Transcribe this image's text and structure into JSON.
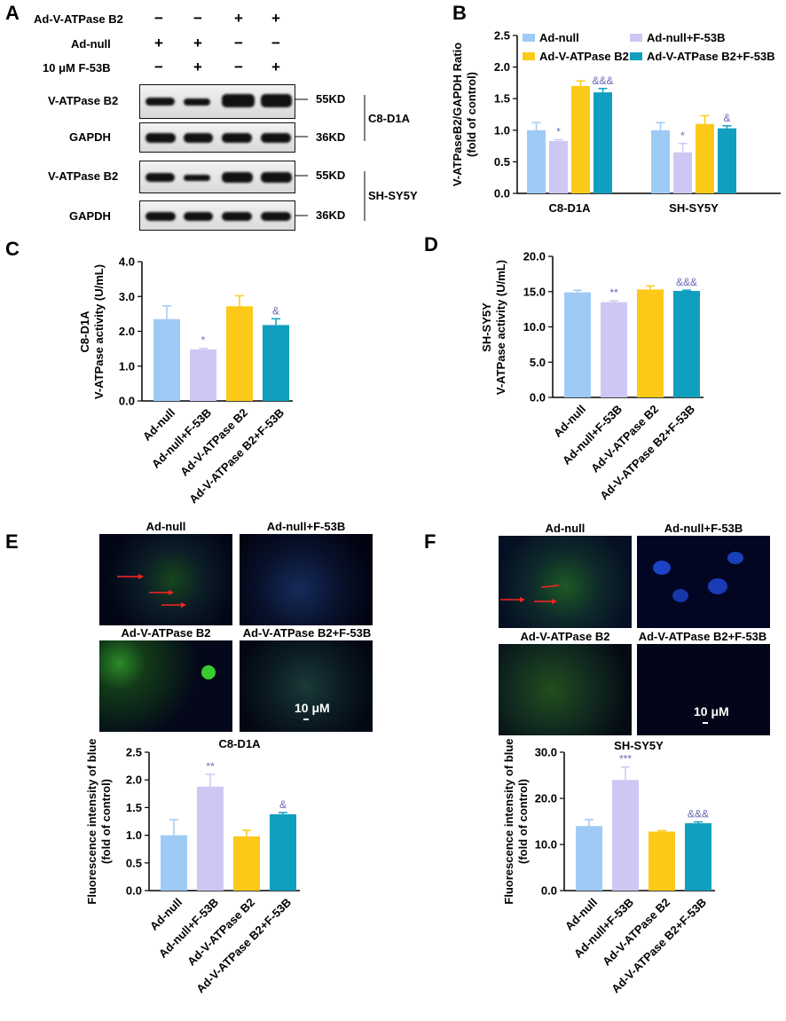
{
  "panels": {
    "A": "A",
    "B": "B",
    "C": "C",
    "D": "D",
    "E": "E",
    "F": "F"
  },
  "colors": {
    "ad_null": "#9ecbf5",
    "ad_null_f53b": "#cdc8f3",
    "ad_vatpase": "#fcc918",
    "ad_vatpase_f53b": "#119fbf",
    "sig": "#6c6ab3",
    "axis": "#000000"
  },
  "panelA": {
    "rows": [
      {
        "label": "Ad-V-ATPase B2",
        "signs": [
          "−",
          "−",
          "+",
          "+"
        ]
      },
      {
        "label": "Ad-null",
        "signs": [
          "+",
          "+",
          "−",
          "−"
        ]
      },
      {
        "label": "10 μM F-53B",
        "signs": [
          "−",
          "+",
          "−",
          "+"
        ]
      }
    ],
    "blots": [
      {
        "label": "V-ATPase B2",
        "kd": "55KD"
      },
      {
        "label": "GAPDH",
        "kd": "36KD"
      },
      {
        "label": "V-ATPase B2",
        "kd": "55KD"
      },
      {
        "label": "GAPDH",
        "kd": "36KD"
      }
    ],
    "cell_lines": [
      "C8-D1A",
      "SH-SY5Y"
    ]
  },
  "panelE": {
    "images": [
      "Ad-null",
      "Ad-null+F-53B",
      "Ad-V-ATPase B2",
      "Ad-V-ATPase B2+F-53B"
    ],
    "scale": "10 μM",
    "cell_line": "C8-D1A"
  },
  "panelF": {
    "images": [
      "Ad-null",
      "Ad-null+F-53B",
      "Ad-V-ATPase B2",
      "Ad-V-ATPase B2+F-53B"
    ],
    "scale": "10 μM",
    "cell_line": "SH-SY5Y"
  },
  "chart_data": [
    {
      "id": "B",
      "type": "bar",
      "ylabel": "V-ATPaseB2/GAPDH Ratio (fold of control)",
      "categories": [
        "C8-D1A",
        "SH-SY5Y"
      ],
      "ylim": [
        0,
        2.5
      ],
      "yticks": [
        "0.0",
        "0.5",
        "1.0",
        "1.5",
        "2.0",
        "2.5"
      ],
      "series": [
        {
          "name": "Ad-null",
          "values": [
            1.0,
            1.0
          ],
          "errors": [
            0.12,
            0.12
          ],
          "sig": [
            "",
            ""
          ]
        },
        {
          "name": "Ad-null+F-53B",
          "values": [
            0.83,
            0.65
          ],
          "errors": [
            0.02,
            0.14
          ],
          "sig": [
            "*",
            "*"
          ]
        },
        {
          "name": "Ad-V-ATPase B2",
          "values": [
            1.7,
            1.1
          ],
          "errors": [
            0.08,
            0.13
          ],
          "sig": [
            "",
            ""
          ]
        },
        {
          "name": "Ad-V-ATPase B2+F-53B",
          "values": [
            1.6,
            1.03
          ],
          "errors": [
            0.06,
            0.04
          ],
          "sig": [
            "&&&",
            "&"
          ]
        }
      ]
    },
    {
      "id": "C",
      "type": "bar",
      "ylabel": "C8-D1A V-ATPase activity (U/mL)",
      "categories": [
        "Ad-null",
        "Ad-null+F-53B",
        "Ad-V-ATPase B2",
        "Ad-V-ATPase B2+F-53B"
      ],
      "ylim": [
        0,
        4
      ],
      "yticks": [
        "0.0",
        "1.0",
        "2.0",
        "3.0",
        "4.0"
      ],
      "values": [
        2.35,
        1.48,
        2.72,
        2.18
      ],
      "errors": [
        0.38,
        0.03,
        0.3,
        0.18
      ],
      "sig": [
        "",
        "*",
        "",
        "&"
      ]
    },
    {
      "id": "D",
      "type": "bar",
      "ylabel": "SH-SY5Y V-ATPase activity (U/mL)",
      "categories": [
        "Ad-null",
        "Ad-null+F-53B",
        "Ad-V-ATPase B2",
        "Ad-V-ATPase B2+F-53B"
      ],
      "ylim": [
        0,
        20
      ],
      "yticks": [
        "0.0",
        "5.0",
        "10.0",
        "15.0",
        "20.0"
      ],
      "values": [
        14.9,
        13.5,
        15.3,
        15.1
      ],
      "errors": [
        0.3,
        0.2,
        0.5,
        0.1
      ],
      "sig": [
        "",
        "**",
        "",
        "&&&"
      ]
    },
    {
      "id": "E",
      "type": "bar",
      "ylabel": "Fluorescence intensity of blue (fold of control)",
      "categories": [
        "Ad-null",
        "Ad-null+F-53B",
        "Ad-V-ATPase B2",
        "Ad-V-ATPase B2+F-53B"
      ],
      "ylim": [
        0,
        2.5
      ],
      "yticks": [
        "0.0",
        "0.5",
        "1.0",
        "1.5",
        "2.0",
        "2.5"
      ],
      "values": [
        1.0,
        1.88,
        0.98,
        1.38
      ],
      "errors": [
        0.28,
        0.22,
        0.11,
        0.03
      ],
      "sig": [
        "",
        "**",
        "",
        "&"
      ]
    },
    {
      "id": "F",
      "type": "bar",
      "ylabel": "Fluorescence intensity of blue (fold of control)",
      "categories": [
        "Ad-null",
        "Ad-null+F-53B",
        "Ad-V-ATPase B2",
        "Ad-V-ATPase B2+F-53B"
      ],
      "ylim": [
        0,
        30
      ],
      "yticks": [
        "0.0",
        "10.0",
        "20.0",
        "30.0"
      ],
      "values": [
        14.0,
        24.0,
        12.8,
        14.6
      ],
      "errors": [
        1.4,
        2.8,
        0.2,
        0.3
      ],
      "sig": [
        "",
        "***",
        "",
        "&&&"
      ]
    }
  ]
}
